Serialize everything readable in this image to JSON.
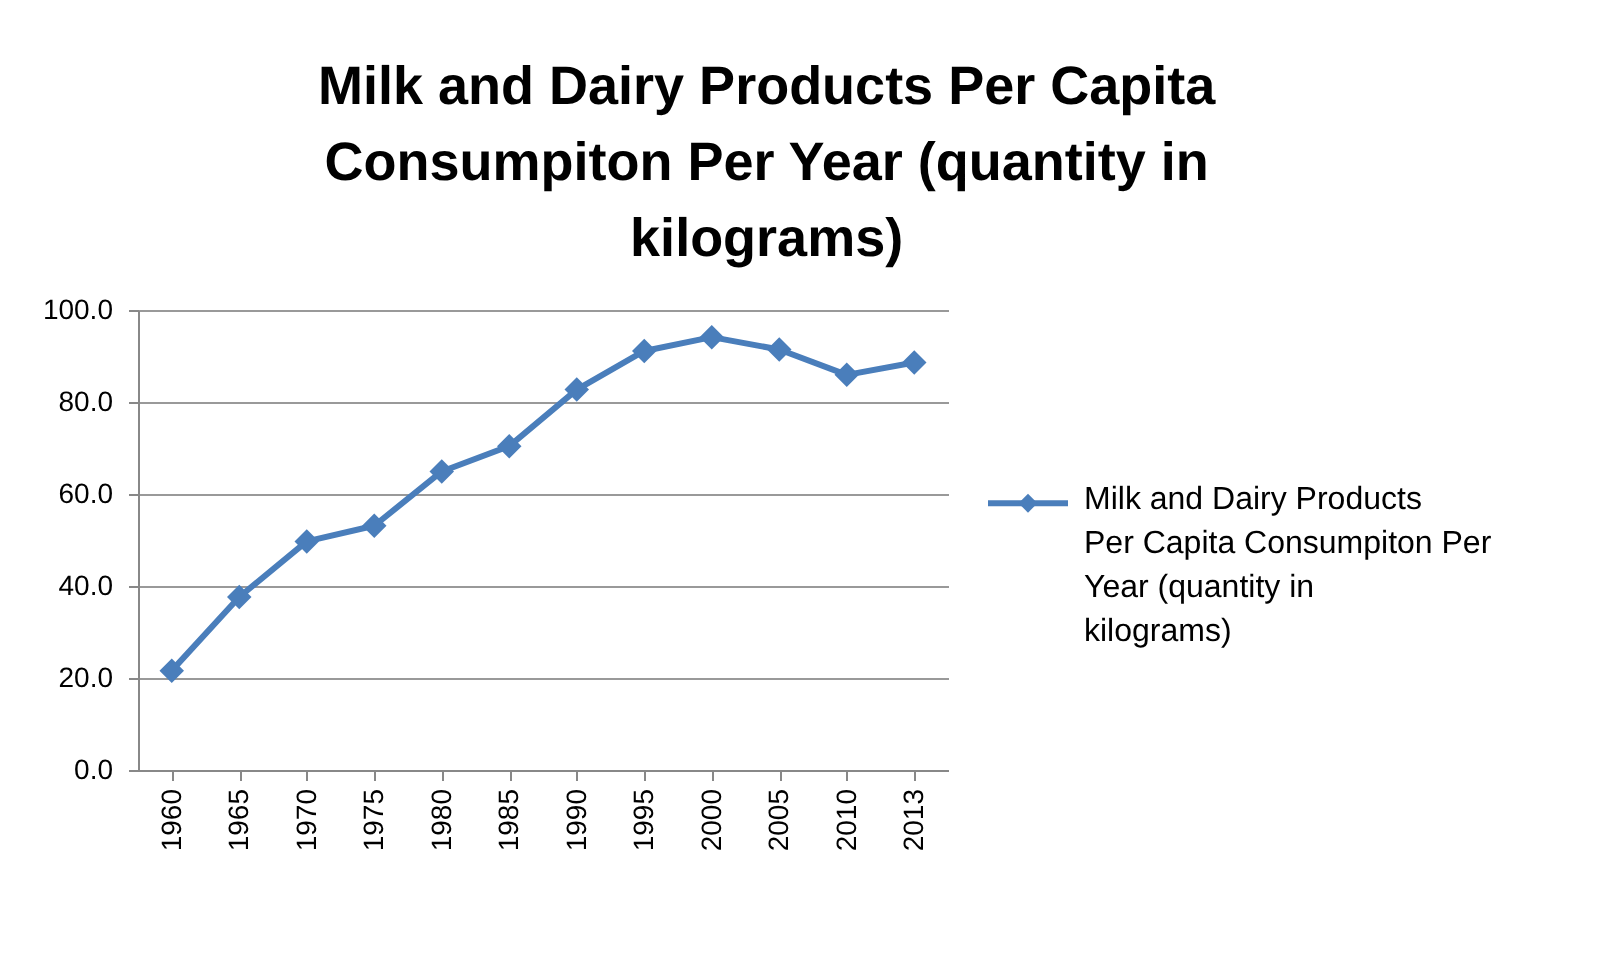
{
  "chart_data": {
    "type": "line",
    "title": "Milk and Dairy Products Per Capita Consumpiton Per Year (quantity in kilograms)",
    "categories": [
      "1960",
      "1965",
      "1970",
      "1975",
      "1980",
      "1985",
      "1990",
      "1995",
      "2000",
      "2005",
      "2010",
      "2013"
    ],
    "series": [
      {
        "name": "Milk and Dairy Products Per Capita Consumpiton Per Year (quantity in kilograms)",
        "color": "#4a7ebb",
        "values": [
          21.6,
          37.6,
          49.7,
          53.1,
          64.9,
          70.4,
          82.7,
          91.1,
          94.1,
          91.4,
          85.9,
          88.6
        ]
      }
    ],
    "ylim": [
      0,
      100
    ],
    "yticks": [
      {
        "value": 0,
        "label": "0.0"
      },
      {
        "value": 20,
        "label": "20.0"
      },
      {
        "value": 40,
        "label": "40.0"
      },
      {
        "value": 60,
        "label": "60.0"
      },
      {
        "value": 80,
        "label": "80.0"
      },
      {
        "value": 100,
        "label": "100.0"
      }
    ],
    "grid": "y",
    "legend": "right",
    "marker": "diamond",
    "line_style": "solid"
  }
}
